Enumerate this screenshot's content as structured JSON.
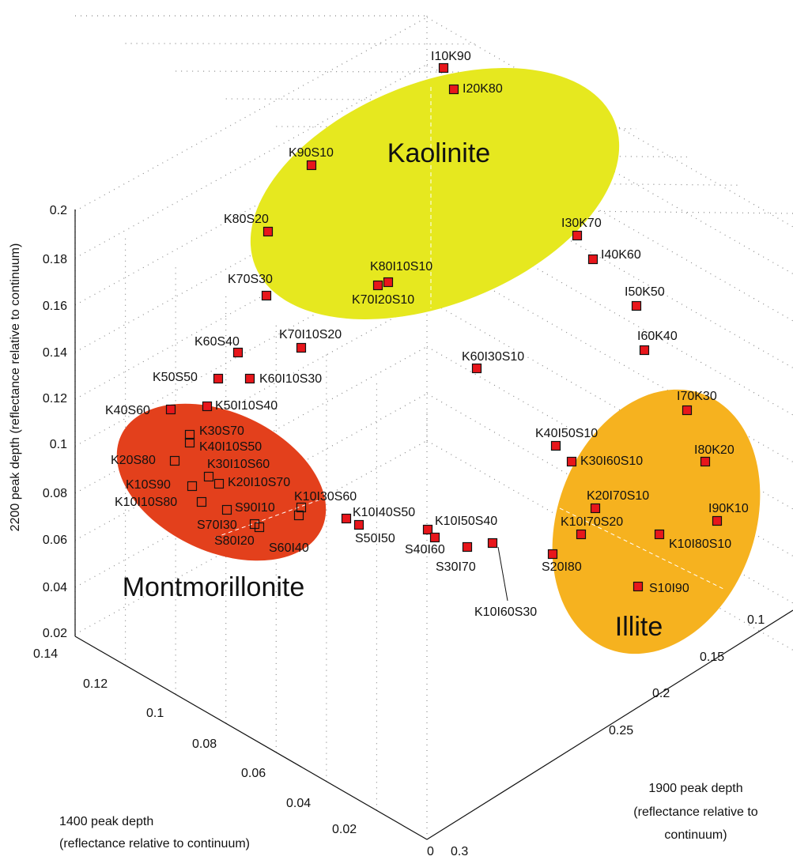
{
  "axes": {
    "z": {
      "title": "2200 peak depth (reflectance relative to continuum)",
      "ticks": [
        0.2,
        0.18,
        0.16,
        0.14,
        0.12,
        0.1,
        0.08,
        0.06,
        0.04,
        0.02
      ]
    },
    "x": {
      "title": [
        "1400 peak depth",
        "(reflectance relative to continuum)"
      ],
      "ticks": [
        0.14,
        0.12,
        0.1,
        0.08,
        0.06,
        0.04,
        0.02,
        0
      ]
    },
    "y": {
      "title": [
        "1900 peak depth",
        "(reflectance relative to",
        "continuum)"
      ],
      "ticks": [
        0.1,
        0.15,
        0.2,
        0.25,
        0.3
      ]
    }
  },
  "regions": [
    {
      "label": "Kaolinite"
    },
    {
      "label": "Montmorillonite"
    },
    {
      "label": "Illite"
    }
  ],
  "points": [
    {
      "label": "I10K90"
    },
    {
      "label": "I20K80"
    },
    {
      "label": "K90S10"
    },
    {
      "label": "K80S20"
    },
    {
      "label": "I30K70"
    },
    {
      "label": "I40K60"
    },
    {
      "label": "K80I10S10"
    },
    {
      "label": "K70I20S10"
    },
    {
      "label": "K70S30"
    },
    {
      "label": "I50K50"
    },
    {
      "label": "K60S40"
    },
    {
      "label": "K70I10S20"
    },
    {
      "label": "I60K40"
    },
    {
      "label": "K60I30S10"
    },
    {
      "label": "K50S50"
    },
    {
      "label": "K60I10S30"
    },
    {
      "label": "K40S60"
    },
    {
      "label": "K50I10S40"
    },
    {
      "label": "I70K30"
    },
    {
      "label": "K30S70"
    },
    {
      "label": "K40I10S50"
    },
    {
      "label": "K40I50S10"
    },
    {
      "label": "K20S80"
    },
    {
      "label": "K30I10S60"
    },
    {
      "label": "I80K20"
    },
    {
      "label": "K30I60S10"
    },
    {
      "label": "K10S90"
    },
    {
      "label": "K20I10S70"
    },
    {
      "label": "K10I10S80"
    },
    {
      "label": "S90I10"
    },
    {
      "label": "K20I70S10"
    },
    {
      "label": "I90K10"
    },
    {
      "label": "S70I30"
    },
    {
      "label": "S80I20"
    },
    {
      "label": "K10I30S60"
    },
    {
      "label": "S60I40"
    },
    {
      "label": "K10I40S50"
    },
    {
      "label": "S50I50"
    },
    {
      "label": "K10I50S40"
    },
    {
      "label": "K10I80S10"
    },
    {
      "label": "K10I70S20"
    },
    {
      "label": "S40I60"
    },
    {
      "label": "S30I70"
    },
    {
      "label": "K10I60S30"
    },
    {
      "label": "S20I80"
    },
    {
      "label": "S10I90"
    }
  ]
}
